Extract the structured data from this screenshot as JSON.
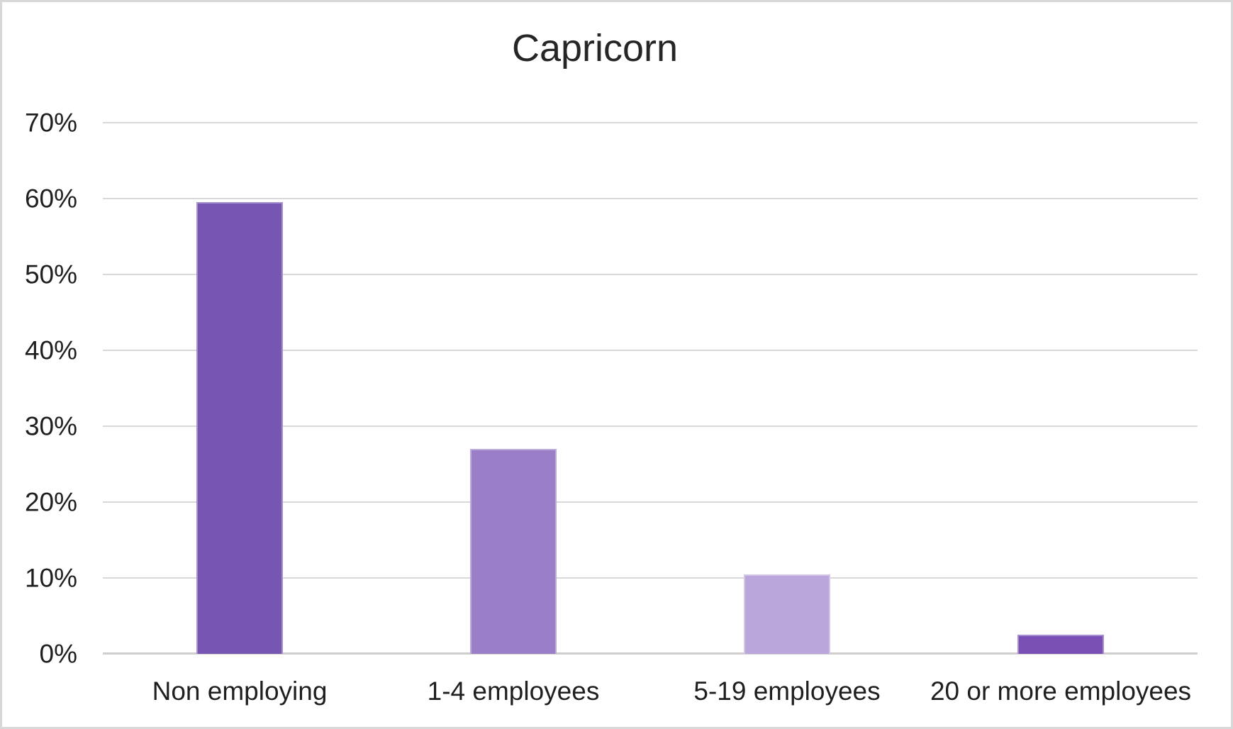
{
  "chart_data": {
    "type": "bar",
    "title": "Capricorn",
    "categories": [
      "Non employing",
      "1-4 employees",
      "5-19 employees",
      "20 or more employees"
    ],
    "values": [
      59.5,
      27,
      10.5,
      2.5
    ],
    "unit": "%",
    "bar_colors": [
      "#7755b3",
      "#9a7fc8",
      "#bba6dc",
      "#7a50b5"
    ],
    "y_ticks": [
      "0%",
      "10%",
      "20%",
      "30%",
      "40%",
      "50%",
      "60%",
      "70%"
    ],
    "ylim": [
      0,
      70
    ],
    "xlabel": "",
    "ylabel": "",
    "grid": "horizontal-gridlines",
    "legend": "none",
    "gridline_color": "#d9d9d9",
    "axis_line_color": "#cfcecd",
    "title_color": "#262626",
    "label_color": "#1f1f1f",
    "background_color": "#ffffff",
    "border_color": "#d8d8d8"
  }
}
